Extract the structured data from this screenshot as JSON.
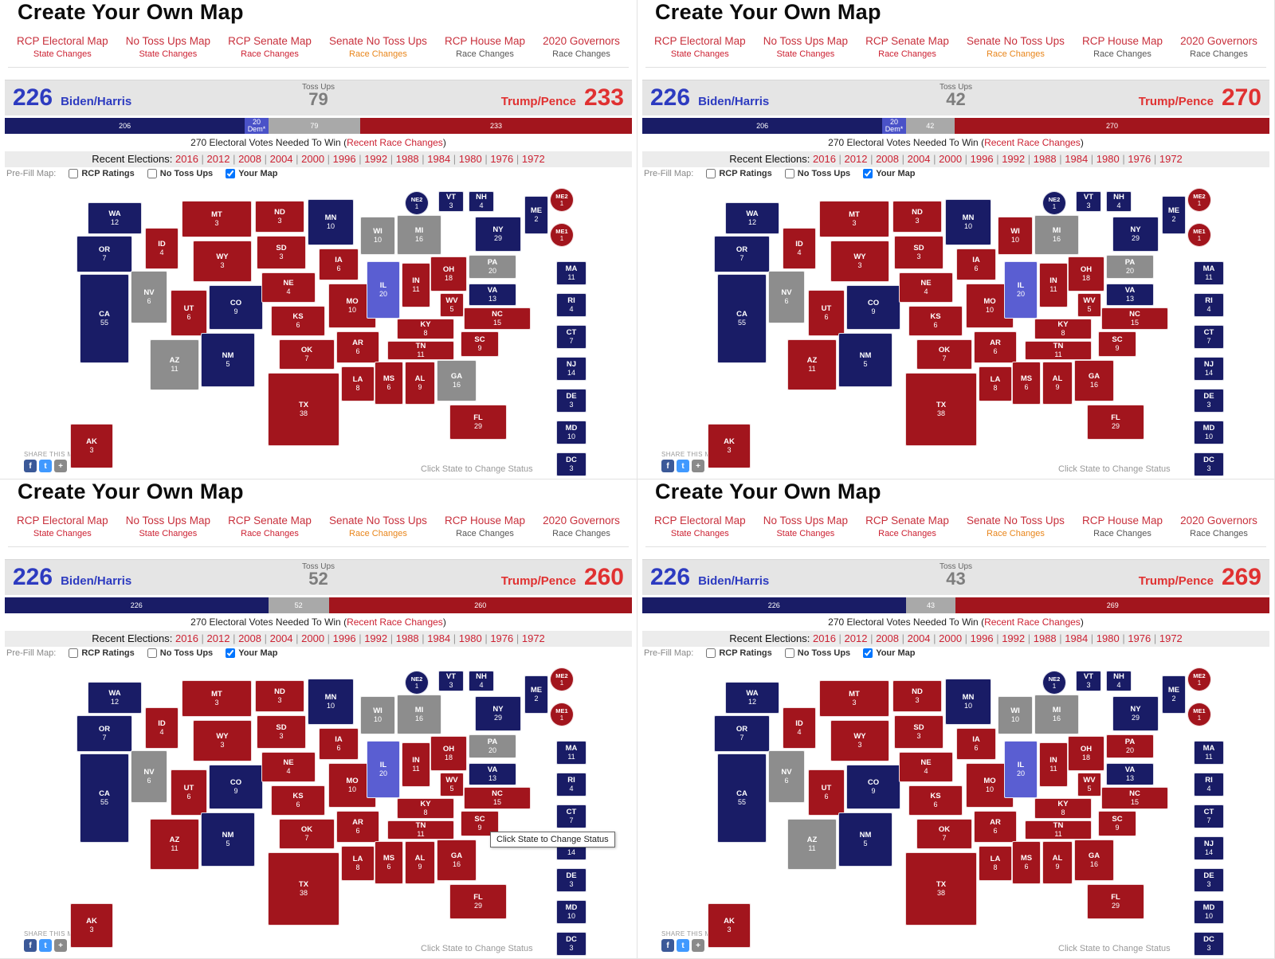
{
  "common": {
    "title": "Create Your Own Map",
    "nav": [
      {
        "label": "RCP Electoral Map",
        "sub": "State Changes",
        "sub_color": "#cc2233"
      },
      {
        "label": "No Toss Ups Map",
        "sub": "State Changes",
        "sub_color": "#cc2233"
      },
      {
        "label": "RCP Senate Map",
        "sub": "Race Changes",
        "sub_color": "#cc2233"
      },
      {
        "label": "Senate No Toss Ups",
        "sub": "Race Changes",
        "sub_color": "#e8851a"
      },
      {
        "label": "RCP House Map",
        "sub": "Race Changes",
        "sub_color": "#555555"
      },
      {
        "label": "2020 Governors",
        "sub": "Race Changes",
        "sub_color": "#555555"
      }
    ],
    "needed": {
      "prefix": "270 Electoral Votes Needed To Win (",
      "link": "Recent Race Changes",
      "suffix": ")"
    },
    "recent": {
      "label": "Recent Elections:",
      "years": [
        "2016",
        "2012",
        "2008",
        "2004",
        "2000",
        "1996",
        "1992",
        "1988",
        "1984",
        "1980",
        "1976",
        "1972"
      ]
    },
    "prefill": {
      "label": "Pre-Fill Map:",
      "options": [
        {
          "label": "RCP Ratings",
          "checked": false
        },
        {
          "label": "No Toss Ups",
          "checked": false
        },
        {
          "label": "Your Map",
          "checked": true
        }
      ]
    },
    "share": {
      "label": "SHARE THIS MAP",
      "icons": [
        {
          "name": "facebook-icon",
          "glyph": "f",
          "color": "#3b5998"
        },
        {
          "name": "twitter-icon",
          "glyph": "t",
          "color": "#4099ff"
        },
        {
          "name": "share-more-icon",
          "glyph": "+",
          "color": "#8a8a8a"
        }
      ]
    },
    "click_hint": "Click State to Change Status"
  },
  "colors": {
    "dem": "#191c66",
    "lean_dem": "#5a5ed2",
    "gop": "#a2151d",
    "tossup": "#8d8d8d",
    "dem_text": "#2d3bc0",
    "gop_text": "#e03131",
    "nav_red": "#c8303c",
    "link_red": "#cc2233"
  },
  "ev_total": 538,
  "states": [
    {
      "id": "WA",
      "label": "WA",
      "ev": 12,
      "kind": "rect"
    },
    {
      "id": "OR",
      "label": "OR",
      "ev": 7,
      "kind": "rect"
    },
    {
      "id": "CA",
      "label": "CA",
      "ev": 55,
      "kind": "rect"
    },
    {
      "id": "NV",
      "label": "NV",
      "ev": 6,
      "kind": "rect"
    },
    {
      "id": "ID",
      "label": "ID",
      "ev": 4,
      "kind": "rect"
    },
    {
      "id": "UT",
      "label": "UT",
      "ev": 6,
      "kind": "rect"
    },
    {
      "id": "AZ",
      "label": "AZ",
      "ev": 11,
      "kind": "rect"
    },
    {
      "id": "MT",
      "label": "MT",
      "ev": 3,
      "kind": "rect"
    },
    {
      "id": "WY",
      "label": "WY",
      "ev": 3,
      "kind": "rect"
    },
    {
      "id": "CO",
      "label": "CO",
      "ev": 9,
      "kind": "rect"
    },
    {
      "id": "NM",
      "label": "NM",
      "ev": 5,
      "kind": "rect"
    },
    {
      "id": "ND",
      "label": "ND",
      "ev": 3,
      "kind": "rect"
    },
    {
      "id": "SD",
      "label": "SD",
      "ev": 3,
      "kind": "rect"
    },
    {
      "id": "NE",
      "label": "NE",
      "ev": 4,
      "kind": "rect"
    },
    {
      "id": "KS",
      "label": "KS",
      "ev": 6,
      "kind": "rect"
    },
    {
      "id": "OK",
      "label": "OK",
      "ev": 7,
      "kind": "rect"
    },
    {
      "id": "TX",
      "label": "TX",
      "ev": 38,
      "kind": "rect"
    },
    {
      "id": "MN",
      "label": "MN",
      "ev": 10,
      "kind": "rect"
    },
    {
      "id": "IA",
      "label": "IA",
      "ev": 6,
      "kind": "rect"
    },
    {
      "id": "MO",
      "label": "MO",
      "ev": 10,
      "kind": "rect"
    },
    {
      "id": "AR",
      "label": "AR",
      "ev": 6,
      "kind": "rect"
    },
    {
      "id": "LA",
      "label": "LA",
      "ev": 8,
      "kind": "rect"
    },
    {
      "id": "WI",
      "label": "WI",
      "ev": 10,
      "kind": "rect"
    },
    {
      "id": "MI",
      "label": "MI",
      "ev": 16,
      "kind": "rect"
    },
    {
      "id": "IL",
      "label": "IL",
      "ev": 20,
      "kind": "rect"
    },
    {
      "id": "IN",
      "label": "IN",
      "ev": 11,
      "kind": "rect"
    },
    {
      "id": "OH",
      "label": "OH",
      "ev": 18,
      "kind": "rect"
    },
    {
      "id": "KY",
      "label": "KY",
      "ev": 8,
      "kind": "rect"
    },
    {
      "id": "TN",
      "label": "TN",
      "ev": 11,
      "kind": "rect"
    },
    {
      "id": "MS",
      "label": "MS",
      "ev": 6,
      "kind": "rect"
    },
    {
      "id": "AL",
      "label": "AL",
      "ev": 9,
      "kind": "rect"
    },
    {
      "id": "GA",
      "label": "GA",
      "ev": 16,
      "kind": "rect"
    },
    {
      "id": "FL",
      "label": "FL",
      "ev": 29,
      "kind": "rect"
    },
    {
      "id": "SC",
      "label": "SC",
      "ev": 9,
      "kind": "rect"
    },
    {
      "id": "NC",
      "label": "NC",
      "ev": 15,
      "kind": "rect"
    },
    {
      "id": "VA",
      "label": "VA",
      "ev": 13,
      "kind": "rect"
    },
    {
      "id": "WV",
      "label": "WV",
      "ev": 5,
      "kind": "rect"
    },
    {
      "id": "PA",
      "label": "PA",
      "ev": 20,
      "kind": "rect"
    },
    {
      "id": "NY",
      "label": "NY",
      "ev": 29,
      "kind": "rect"
    },
    {
      "id": "ME",
      "label": "ME",
      "ev": 2,
      "kind": "rect"
    },
    {
      "id": "AK",
      "label": "AK",
      "ev": 3,
      "kind": "rect"
    },
    {
      "id": "VT",
      "label": "VT",
      "ev": 3,
      "kind": "box"
    },
    {
      "id": "NH",
      "label": "NH",
      "ev": 4,
      "kind": "box"
    },
    {
      "id": "MA",
      "label": "MA",
      "ev": 11,
      "kind": "box"
    },
    {
      "id": "RI",
      "label": "RI",
      "ev": 4,
      "kind": "box"
    },
    {
      "id": "CT",
      "label": "CT",
      "ev": 7,
      "kind": "box"
    },
    {
      "id": "NJ",
      "label": "NJ",
      "ev": 14,
      "kind": "box"
    },
    {
      "id": "DE",
      "label": "DE",
      "ev": 3,
      "kind": "box"
    },
    {
      "id": "MD",
      "label": "MD",
      "ev": 10,
      "kind": "box"
    },
    {
      "id": "DC",
      "label": "DC",
      "ev": 3,
      "kind": "box"
    },
    {
      "id": "NE2",
      "label": "NE2",
      "ev": 1,
      "kind": "circle"
    },
    {
      "id": "ME1",
      "label": "ME1",
      "ev": 1,
      "kind": "circle"
    },
    {
      "id": "ME2",
      "label": "ME2",
      "ev": 1,
      "kind": "circle"
    }
  ],
  "base_status": {
    "WA": "dem",
    "OR": "dem",
    "CA": "dem",
    "NV": "tossup",
    "ID": "gop",
    "UT": "gop",
    "AZ": "tossup",
    "MT": "gop",
    "WY": "gop",
    "CO": "dem",
    "NM": "dem",
    "ND": "gop",
    "SD": "gop",
    "NE": "gop",
    "KS": "gop",
    "OK": "gop",
    "TX": "gop",
    "MN": "dem",
    "IA": "gop",
    "MO": "gop",
    "AR": "gop",
    "LA": "gop",
    "WI": "tossup",
    "MI": "tossup",
    "IL": "lean_dem",
    "IN": "gop",
    "OH": "gop",
    "KY": "gop",
    "TN": "gop",
    "MS": "gop",
    "AL": "gop",
    "GA": "tossup",
    "FL": "gop",
    "SC": "gop",
    "NC": "gop",
    "VA": "dem",
    "WV": "gop",
    "PA": "tossup",
    "NY": "dem",
    "ME": "dem",
    "AK": "gop",
    "VT": "dem",
    "NH": "dem",
    "MA": "dem",
    "RI": "dem",
    "CT": "dem",
    "NJ": "dem",
    "DE": "dem",
    "MD": "dem",
    "DC": "dem",
    "NE2": "dem",
    "ME1": "gop",
    "ME2": "gop"
  },
  "quadrants": [
    {
      "name": "top-left",
      "score": {
        "dem_total": "226",
        "dem_name": "Biden/Harris",
        "tossup_label": "Toss Ups",
        "tossup_total": "79",
        "gop_name": "Trump/Pence",
        "gop_total": "233"
      },
      "bar": [
        {
          "label": "206",
          "ev": 206,
          "type": "dem"
        },
        {
          "label": "20 Dem*",
          "ev": 20,
          "type": "lean_dem"
        },
        {
          "label": "79",
          "ev": 79,
          "type": "tossup"
        },
        {
          "label": "233",
          "ev": 233,
          "type": "gop"
        }
      ],
      "overrides": {},
      "tooltip": false
    },
    {
      "name": "top-right",
      "score": {
        "dem_total": "226",
        "dem_name": "Biden/Harris",
        "tossup_label": "Toss Ups",
        "tossup_total": "42",
        "gop_name": "Trump/Pence",
        "gop_total": "270"
      },
      "bar": [
        {
          "label": "206",
          "ev": 206,
          "type": "dem"
        },
        {
          "label": "20 Dem*",
          "ev": 20,
          "type": "lean_dem"
        },
        {
          "label": "42",
          "ev": 42,
          "type": "tossup"
        },
        {
          "label": "270",
          "ev": 270,
          "type": "gop"
        }
      ],
      "overrides": {
        "AZ": "gop",
        "WI": "gop",
        "GA": "gop"
      },
      "tooltip": false
    },
    {
      "name": "bottom-left",
      "score": {
        "dem_total": "226",
        "dem_name": "Biden/Harris",
        "tossup_label": "Toss Ups",
        "tossup_total": "52",
        "gop_name": "Trump/Pence",
        "gop_total": "260"
      },
      "bar": [
        {
          "label": "226",
          "ev": 226,
          "type": "dem"
        },
        {
          "label": "52",
          "ev": 52,
          "type": "tossup"
        },
        {
          "label": "260",
          "ev": 260,
          "type": "gop"
        }
      ],
      "overrides": {
        "AZ": "gop",
        "GA": "gop"
      },
      "tooltip": true
    },
    {
      "name": "bottom-right",
      "score": {
        "dem_total": "226",
        "dem_name": "Biden/Harris",
        "tossup_label": "Toss Ups",
        "tossup_total": "43",
        "gop_name": "Trump/Pence",
        "gop_total": "269"
      },
      "bar": [
        {
          "label": "226",
          "ev": 226,
          "type": "dem"
        },
        {
          "label": "43",
          "ev": 43,
          "type": "tossup"
        },
        {
          "label": "269",
          "ev": 269,
          "type": "gop"
        }
      ],
      "overrides": {
        "PA": "gop",
        "GA": "gop"
      },
      "tooltip": false
    }
  ]
}
